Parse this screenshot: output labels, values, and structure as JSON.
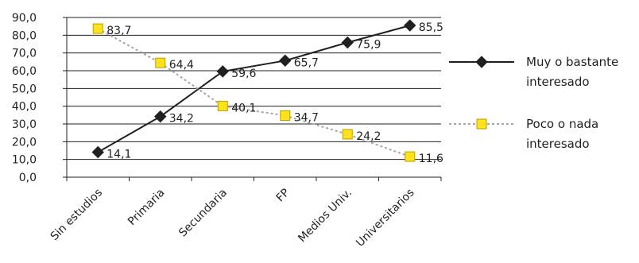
{
  "chart_data": {
    "type": "line",
    "categories": [
      "Sin estudios",
      "Primaria",
      "Secundaria",
      "FP",
      "Medios Univ.",
      "Universitarios"
    ],
    "y_tick_labels": [
      "0,0",
      "10,0",
      "20,0",
      "30,0",
      "40,0",
      "50,0",
      "60,0",
      "70,0",
      "80,0",
      "90,0"
    ],
    "ylim": [
      0,
      90
    ],
    "grid": true,
    "legend_position": "right",
    "series": [
      {
        "name": "Muy o bastante interesado",
        "legend_lines": [
          "Muy o bastante",
          "interesado"
        ],
        "values": [
          14.1,
          34.2,
          59.6,
          65.7,
          75.9,
          85.5
        ],
        "labels": [
          "14,1",
          "34,2",
          "59,6",
          "65,7",
          "75,9",
          "85,5"
        ],
        "color": "#231f20",
        "marker": "diamond",
        "line_style": "solid"
      },
      {
        "name": "Poco o nada interesado",
        "legend_lines": [
          "Poco o nada",
          "interesado"
        ],
        "values": [
          83.7,
          64.4,
          40.1,
          34.7,
          24.2,
          11.6
        ],
        "labels": [
          "83,7",
          "64,4",
          "40,1",
          "34,7",
          "24,2",
          "11,6"
        ],
        "color": "#a6a6a6",
        "marker_fill": "#ffe11c",
        "marker_stroke": "#b8a000",
        "marker": "square",
        "line_style": "dotted"
      }
    ]
  }
}
